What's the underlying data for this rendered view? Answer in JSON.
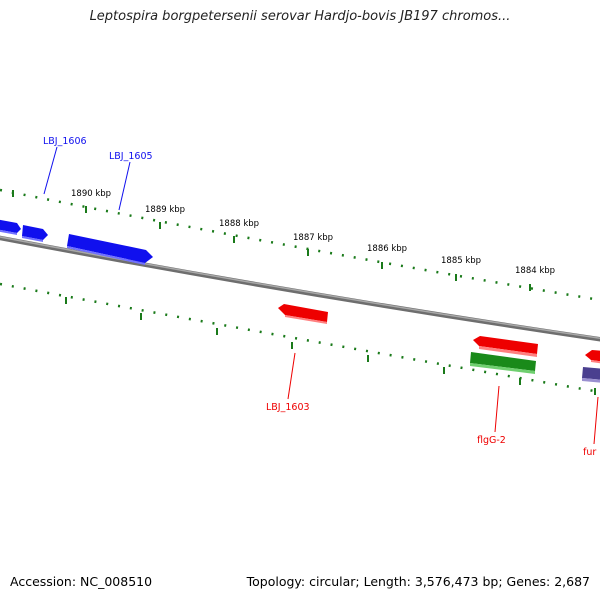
{
  "title": "Leptospira borgpetersenii serovar Hardjo-bovis JB197 chromos...",
  "footer": {
    "accession": "Accession: NC_008510",
    "summary": "Topology: circular; Length: 3,576,473 bp; Genes: 2,687"
  },
  "scale_labels": [
    "1890 kbp",
    "1889 kbp",
    "1888 kbp",
    "1887 kbp",
    "1886 kbp",
    "1885 kbp",
    "1884 kbp"
  ],
  "gene_labels": {
    "lbj1606": "LBJ_1606",
    "lbj1605": "LBJ_1605",
    "lbj1603": "LBJ_1603",
    "flgG2": "flgG-2",
    "fur": "fur"
  },
  "colors": {
    "forward_gene": "#1010ee",
    "reverse_gene": "#ee0000",
    "rna_gene": "#1a8a1a",
    "other_gene": "#4a3f8f",
    "tick": "#1a7a1a",
    "backbone": "#808080"
  }
}
